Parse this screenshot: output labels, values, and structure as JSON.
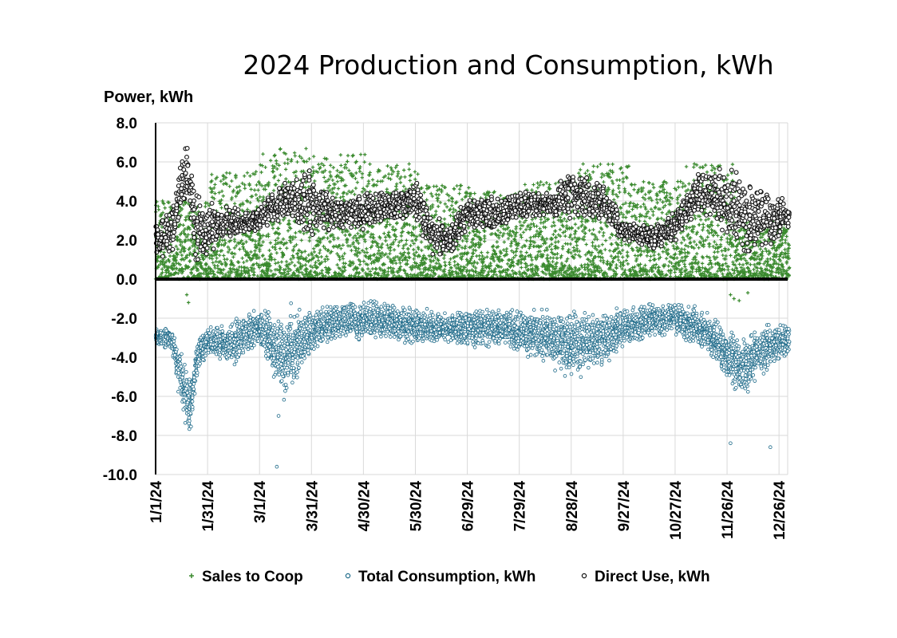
{
  "chart_data": {
    "type": "scatter",
    "title": "2024 Production and Consumption, kWh",
    "ylabel": "Power, kWh",
    "xlabel": "",
    "ylim": [
      -10,
      8
    ],
    "y_ticks": [
      "8.0",
      "6.0",
      "4.0",
      "2.0",
      "0.0",
      "-2.0",
      "-4.0",
      "-6.0",
      "-8.0",
      "-10.0"
    ],
    "x_range": [
      "1/1/24",
      "12/31/24"
    ],
    "x_ticks": [
      "1/1/24",
      "1/31/24",
      "3/1/24",
      "3/31/24",
      "4/30/24",
      "5/30/24",
      "6/29/24",
      "7/29/24",
      "8/28/24",
      "9/27/24",
      "10/27/24",
      "11/26/24",
      "12/26/24"
    ],
    "grid": true,
    "legend_position": "bottom",
    "series": [
      {
        "name": "Sales to Coop",
        "marker": "plus",
        "color": "#3a8a2e",
        "typical_range_by_month": [
          {
            "month": "1/24",
            "low": 0.0,
            "high": 4.0
          },
          {
            "month": "2/24",
            "low": 0.0,
            "high": 5.5
          },
          {
            "month": "3/24",
            "low": 0.0,
            "high": 6.7
          },
          {
            "month": "4/24",
            "low": 0.0,
            "high": 6.4
          },
          {
            "month": "5/24",
            "low": 0.0,
            "high": 5.9
          },
          {
            "month": "6/24",
            "low": 0.0,
            "high": 4.8
          },
          {
            "month": "7/24",
            "low": 0.0,
            "high": 4.5
          },
          {
            "month": "8/24",
            "low": 0.0,
            "high": 5.0
          },
          {
            "month": "9/24",
            "low": 0.0,
            "high": 5.9
          },
          {
            "month": "10/24",
            "low": 0.0,
            "high": 5.0
          },
          {
            "month": "11/24",
            "low": 0.0,
            "high": 5.9
          },
          {
            "month": "12/24",
            "low": 0.0,
            "high": 3.0
          }
        ]
      },
      {
        "name": "Total Consumption, kWh",
        "marker": "open-circle",
        "color": "#1f6b8a",
        "daily_band": [
          {
            "date": "1/1/24",
            "low": -3.5,
            "high": -2.4
          },
          {
            "date": "1/10/24",
            "low": -3.6,
            "high": -2.5
          },
          {
            "date": "1/17/24",
            "low": -7.0,
            "high": -4.0
          },
          {
            "date": "1/21/24",
            "low": -8.0,
            "high": -5.0
          },
          {
            "date": "1/25/24",
            "low": -5.0,
            "high": -3.0
          },
          {
            "date": "1/31/24",
            "low": -3.8,
            "high": -2.5
          },
          {
            "date": "2/15/24",
            "low": -4.5,
            "high": -2.0
          },
          {
            "date": "3/1/24",
            "low": -3.5,
            "high": -1.5
          },
          {
            "date": "3/15/24",
            "low": -6.5,
            "high": -1.2
          },
          {
            "date": "3/31/24",
            "low": -4.0,
            "high": -1.5
          },
          {
            "date": "4/15/24",
            "low": -3.0,
            "high": -1.2
          },
          {
            "date": "4/30/24",
            "low": -3.2,
            "high": -1.0
          },
          {
            "date": "5/15/24",
            "low": -3.0,
            "high": -1.2
          },
          {
            "date": "5/30/24",
            "low": -3.5,
            "high": -1.5
          },
          {
            "date": "6/15/24",
            "low": -3.2,
            "high": -1.8
          },
          {
            "date": "6/29/24",
            "low": -3.5,
            "high": -1.5
          },
          {
            "date": "7/15/24",
            "low": -3.5,
            "high": -1.5
          },
          {
            "date": "7/29/24",
            "low": -3.8,
            "high": -1.5
          },
          {
            "date": "8/15/24",
            "low": -4.5,
            "high": -1.5
          },
          {
            "date": "8/28/24",
            "low": -5.0,
            "high": -1.5
          },
          {
            "date": "9/15/24",
            "low": -4.5,
            "high": -1.5
          },
          {
            "date": "9/27/24",
            "low": -3.5,
            "high": -1.5
          },
          {
            "date": "10/15/24",
            "low": -3.0,
            "high": -1.2
          },
          {
            "date": "10/27/24",
            "low": -2.8,
            "high": -1.2
          },
          {
            "date": "11/15/24",
            "low": -4.0,
            "high": -1.5
          },
          {
            "date": "11/26/24",
            "low": -5.5,
            "high": -2.5
          },
          {
            "date": "12/5/24",
            "low": -6.0,
            "high": -3.0
          },
          {
            "date": "12/15/24",
            "low": -5.0,
            "high": -2.5
          },
          {
            "date": "12/31/24",
            "low": -4.0,
            "high": -2.0
          }
        ],
        "outliers": [
          {
            "date": "3/11/24",
            "y": -9.6
          },
          {
            "date": "3/12/24",
            "y": -7.0
          },
          {
            "date": "11/28/24",
            "y": -8.4
          },
          {
            "date": "12/21/24",
            "y": -8.6
          }
        ]
      },
      {
        "name": "Direct Use, kWh",
        "marker": "open-circle",
        "color": "#111111",
        "daily_band": [
          {
            "date": "1/1/24",
            "low": 1.0,
            "high": 3.3
          },
          {
            "date": "1/10/24",
            "low": 0.8,
            "high": 3.6
          },
          {
            "date": "1/19/24",
            "low": 4.5,
            "high": 7.2
          },
          {
            "date": "1/25/24",
            "low": 0.5,
            "high": 4.5
          },
          {
            "date": "2/10/24",
            "low": 2.0,
            "high": 3.8
          },
          {
            "date": "2/25/24",
            "low": 2.2,
            "high": 3.5
          },
          {
            "date": "3/15/24",
            "low": 3.0,
            "high": 5.0
          },
          {
            "date": "3/31/24",
            "low": 2.0,
            "high": 5.8
          },
          {
            "date": "4/15/24",
            "low": 2.5,
            "high": 4.0
          },
          {
            "date": "4/30/24",
            "low": 2.5,
            "high": 4.5
          },
          {
            "date": "5/15/24",
            "low": 3.0,
            "high": 4.5
          },
          {
            "date": "5/30/24",
            "low": 3.0,
            "high": 5.2
          },
          {
            "date": "6/10/24",
            "low": 1.0,
            "high": 3.2
          },
          {
            "date": "6/20/24",
            "low": 1.2,
            "high": 3.0
          },
          {
            "date": "6/29/24",
            "low": 2.5,
            "high": 4.3
          },
          {
            "date": "7/15/24",
            "low": 2.5,
            "high": 4.2
          },
          {
            "date": "7/29/24",
            "low": 3.0,
            "high": 4.5
          },
          {
            "date": "8/15/24",
            "low": 3.2,
            "high": 4.5
          },
          {
            "date": "8/28/24",
            "low": 3.0,
            "high": 5.5
          },
          {
            "date": "9/15/24",
            "low": 3.0,
            "high": 5.0
          },
          {
            "date": "9/27/24",
            "low": 2.0,
            "high": 3.0
          },
          {
            "date": "10/15/24",
            "low": 1.5,
            "high": 2.8
          },
          {
            "date": "10/27/24",
            "low": 1.8,
            "high": 3.5
          },
          {
            "date": "11/10/24",
            "low": 3.5,
            "high": 5.6
          },
          {
            "date": "11/26/24",
            "low": 2.0,
            "high": 5.8
          },
          {
            "date": "12/5/24",
            "low": 1.0,
            "high": 5.3
          },
          {
            "date": "12/20/24",
            "low": 1.5,
            "high": 4.9
          },
          {
            "date": "12/31/24",
            "low": 2.5,
            "high": 4.0
          }
        ]
      }
    ]
  }
}
